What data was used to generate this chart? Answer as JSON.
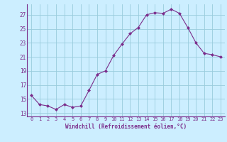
{
  "x": [
    0,
    1,
    2,
    3,
    4,
    5,
    6,
    7,
    8,
    9,
    10,
    11,
    12,
    13,
    14,
    15,
    16,
    17,
    18,
    19,
    20,
    21,
    22,
    23
  ],
  "y": [
    15.5,
    14.2,
    14.0,
    13.5,
    14.2,
    13.8,
    14.0,
    16.2,
    18.5,
    19.0,
    21.2,
    22.8,
    24.3,
    25.2,
    27.0,
    27.3,
    27.2,
    27.8,
    27.2,
    25.2,
    23.0,
    21.5,
    21.3,
    21.0
  ],
  "line_color": "#7b2d8b",
  "marker_color": "#7b2d8b",
  "bg_color": "#cceeff",
  "grid_color": "#99ccdd",
  "xlabel": "Windchill (Refroidissement éolien,°C)",
  "xlabel_color": "#7b2d8b",
  "tick_color": "#7b2d8b",
  "ylim": [
    12.5,
    28.5
  ],
  "yticks": [
    13,
    15,
    17,
    19,
    21,
    23,
    25,
    27
  ],
  "xlim": [
    -0.5,
    23.5
  ]
}
